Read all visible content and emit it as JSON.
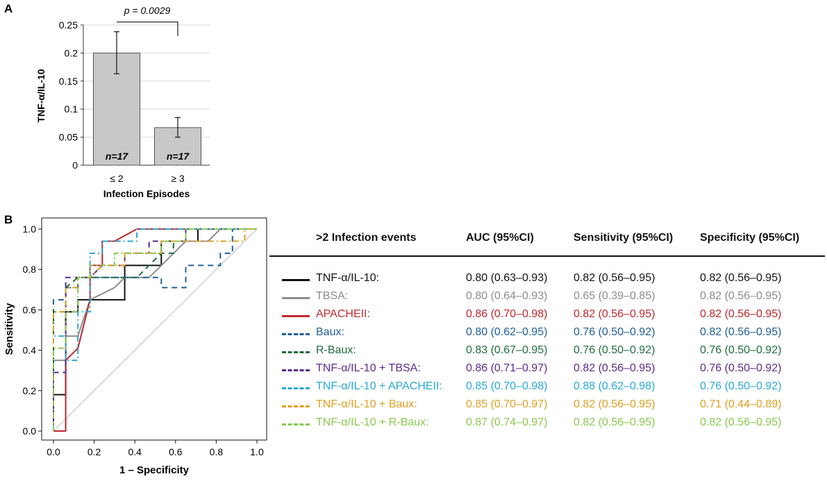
{
  "panel_labels": {
    "a": "A",
    "b": "B"
  },
  "colors": {
    "bar_fill": "#c8c8c8",
    "bar_stroke": "#555555",
    "grid": "#d8d8d8",
    "axis": "#333333"
  },
  "chart_data": [
    {
      "type": "bar",
      "panel": "A",
      "title": "",
      "ylabel": "TNF-α/IL-10",
      "xlabel": "Infection Episodes",
      "categories": [
        "≤ 2",
        "≥ 3"
      ],
      "values": [
        0.2,
        0.067
      ],
      "error_upper": [
        0.238,
        0.085
      ],
      "error_lower": [
        0.163,
        0.05
      ],
      "bar_labels": [
        "n=17",
        "n=17"
      ],
      "ylim": [
        0,
        0.25
      ],
      "yticks": [
        0,
        0.05,
        0.1,
        0.15,
        0.2,
        0.25
      ],
      "ytick_labels": [
        "0",
        "0.05",
        "0.1",
        "0.15",
        "0.2",
        "0.25"
      ],
      "grid": true,
      "annotation": "p = 0.0029"
    },
    {
      "type": "line",
      "panel": "B",
      "title": "",
      "xlabel": "1 – Specificity",
      "ylabel": "Sensitivity",
      "xlim": [
        0,
        1
      ],
      "ylim": [
        0,
        1
      ],
      "xticks": [
        0,
        0.2,
        0.4,
        0.6,
        0.8,
        1.0
      ],
      "xtick_labels": [
        "0.0",
        "0.2",
        "0.4",
        "0.6",
        "0.8",
        "1.0"
      ],
      "yticks": [
        0,
        0.2,
        0.4,
        0.6,
        0.8,
        1.0
      ],
      "ytick_labels": [
        "0.0",
        "0.2",
        "0.4",
        "0.6",
        "0.8",
        "1.0"
      ],
      "reference_line": {
        "x": [
          0,
          1
        ],
        "y": [
          0,
          1
        ],
        "color": "#bbbbbb"
      },
      "table_header": {
        "name": ">2 Infection events",
        "auc": "AUC (95%CI)",
        "sensitivity": "Sensitivity (95%CI)",
        "specificity": "Specificity (95%CI)"
      },
      "series": [
        {
          "name": "TNF-α/IL-10:",
          "color": "#111111",
          "dash": "solid",
          "auc": "0.80 (0.63–0.93)",
          "sensitivity": "0.82 (0.56–0.95)",
          "specificity": "0.82 (0.56–0.95)",
          "x": [
            0,
            0,
            0.06,
            0.06,
            0.12,
            0.12,
            0.18,
            0.18,
            0.35,
            0.35,
            0.53,
            0.53,
            0.71,
            0.71,
            0.82,
            0.82,
            1.0
          ],
          "y": [
            0,
            0.18,
            0.18,
            0.59,
            0.59,
            0.65,
            0.65,
            0.65,
            0.65,
            0.82,
            0.82,
            0.94,
            0.94,
            1.0,
            1.0,
            1.0,
            1.0
          ]
        },
        {
          "name": "TBSA:",
          "color": "#8c8c8c",
          "dash": "solid",
          "auc": "0.80 (0.64–0.93)",
          "sensitivity": "0.65 (0.39–0.85)",
          "specificity": "0.82 (0.56–0.95)",
          "x": [
            0,
            0,
            0.06,
            0.06,
            0.12,
            0.18,
            0.3,
            0.35,
            0.47,
            0.53,
            0.59,
            0.65,
            0.71,
            0.76,
            0.82,
            0.88,
            1.0
          ],
          "y": [
            0,
            0.35,
            0.35,
            0.47,
            0.47,
            0.65,
            0.71,
            0.76,
            0.76,
            0.82,
            0.88,
            0.94,
            0.94,
            0.94,
            1.0,
            1.0,
            1.0
          ]
        },
        {
          "name": "APACHEII:",
          "color": "#c0282d",
          "dash": "solid",
          "auc": "0.86 (0.70–0.98)",
          "sensitivity": "0.82 (0.56–0.95)",
          "specificity": "0.82 (0.56–0.95)",
          "x": [
            0,
            0,
            0.06,
            0.06,
            0.12,
            0.18,
            0.18,
            0.24,
            0.24,
            0.3,
            0.41,
            0.41,
            1.0
          ],
          "y": [
            0,
            0,
            0,
            0.35,
            0.41,
            0.65,
            0.82,
            0.82,
            0.94,
            0.94,
            1.0,
            1.0,
            1.0
          ]
        },
        {
          "name": "Baux:",
          "color": "#1f5f9a",
          "dash": "8,6",
          "auc": "0.80 (0.62–0.95)",
          "sensitivity": "0.76 (0.50–0.92)",
          "specificity": "0.82 (0.56–0.95)",
          "x": [
            0,
            0,
            0.06,
            0.06,
            0.12,
            0.12,
            0.18,
            0.24,
            0.24,
            0.53,
            0.53,
            0.65,
            0.65,
            0.82,
            0.82,
            0.88,
            0.88,
            1.0
          ],
          "y": [
            0,
            0.65,
            0.65,
            0.71,
            0.71,
            0.76,
            0.76,
            0.76,
            0.76,
            0.76,
            0.71,
            0.71,
            0.82,
            0.82,
            0.88,
            0.88,
            1.0,
            1.0
          ]
        },
        {
          "name": "R-Baux:",
          "color": "#1e6e3c",
          "dash": "8,6",
          "auc": "0.83 (0.67–0.95)",
          "sensitivity": "0.76 (0.50–0.92)",
          "specificity": "0.76 (0.50–0.92)",
          "x": [
            0,
            0,
            0.06,
            0.06,
            0.12,
            0.18,
            0.24,
            0.24,
            0.41,
            0.41,
            0.53,
            0.59,
            0.59,
            0.65,
            0.65,
            0.88,
            1.0
          ],
          "y": [
            0,
            0.59,
            0.59,
            0.71,
            0.76,
            0.76,
            0.76,
            0.76,
            0.76,
            0.76,
            0.88,
            0.88,
            0.94,
            0.94,
            1.0,
            1.0,
            1.0
          ]
        },
        {
          "name": "TNF-α/IL-10 + TBSA:",
          "color": "#5b2b8c",
          "dash": "8,6",
          "auc": "0.86 (0.71–0.97)",
          "sensitivity": "0.82 (0.56–0.95)",
          "specificity": "0.76 (0.50–0.92)",
          "x": [
            0,
            0,
            0.06,
            0.06,
            0.12,
            0.12,
            0.18,
            0.24,
            0.35,
            0.35,
            0.47,
            0.47,
            0.65,
            0.65,
            0.82,
            1.0
          ],
          "y": [
            0,
            0.29,
            0.29,
            0.76,
            0.76,
            0.76,
            0.76,
            0.82,
            0.82,
            0.88,
            0.88,
            0.94,
            0.94,
            1.0,
            1.0,
            1.0
          ]
        },
        {
          "name": "TNF-α/IL-10 + APACHEII:",
          "color": "#2aa8d8",
          "dash": "8,4,2,4",
          "auc": "0.85 (0.70–0.98)",
          "sensitivity": "0.88 (0.62–0.98)",
          "specificity": "0.76 (0.50–0.92)",
          "x": [
            0,
            0,
            0.06,
            0.06,
            0.12,
            0.12,
            0.18,
            0.18,
            0.24,
            0.24,
            0.41,
            0.41,
            0.59,
            0.59,
            1.0
          ],
          "y": [
            0,
            0.47,
            0.47,
            0.35,
            0.35,
            0.59,
            0.59,
            0.88,
            0.88,
            0.94,
            0.94,
            1.0,
            1.0,
            1.0,
            1.0
          ]
        },
        {
          "name": "TNF-α/IL-10 + Baux:",
          "color": "#e0a020",
          "dash": "8,4,2,4",
          "auc": "0.85 (0.70–0.97)",
          "sensitivity": "0.82 (0.56–0.95)",
          "specificity": "0.71 (0.44–0.89)",
          "x": [
            0,
            0,
            0.06,
            0.06,
            0.12,
            0.12,
            0.18,
            0.24,
            0.35,
            0.35,
            0.53,
            0.53,
            0.59,
            0.71,
            0.82,
            0.82,
            0.94,
            0.94,
            1.0
          ],
          "y": [
            0,
            0.59,
            0.59,
            0.71,
            0.71,
            0.76,
            0.76,
            0.82,
            0.82,
            0.88,
            0.88,
            0.94,
            0.94,
            0.94,
            0.94,
            0.94,
            0.94,
            1.0,
            1.0
          ]
        },
        {
          "name": "TNF-α/IL-10 + R-Baux:",
          "color": "#8cc850",
          "dash": "8,4,2,4",
          "auc": "0.87 (0.74–0.97)",
          "sensitivity": "0.82 (0.56–0.95)",
          "specificity": "0.82 (0.56–0.95)",
          "x": [
            0,
            0,
            0.06,
            0.06,
            0.12,
            0.12,
            0.18,
            0.18,
            0.3,
            0.3,
            0.53,
            0.53,
            0.65,
            0.65,
            1.0
          ],
          "y": [
            0,
            0.41,
            0.41,
            0.59,
            0.59,
            0.76,
            0.76,
            0.82,
            0.82,
            0.88,
            0.88,
            0.94,
            0.94,
            1.0,
            1.0
          ]
        }
      ]
    }
  ]
}
